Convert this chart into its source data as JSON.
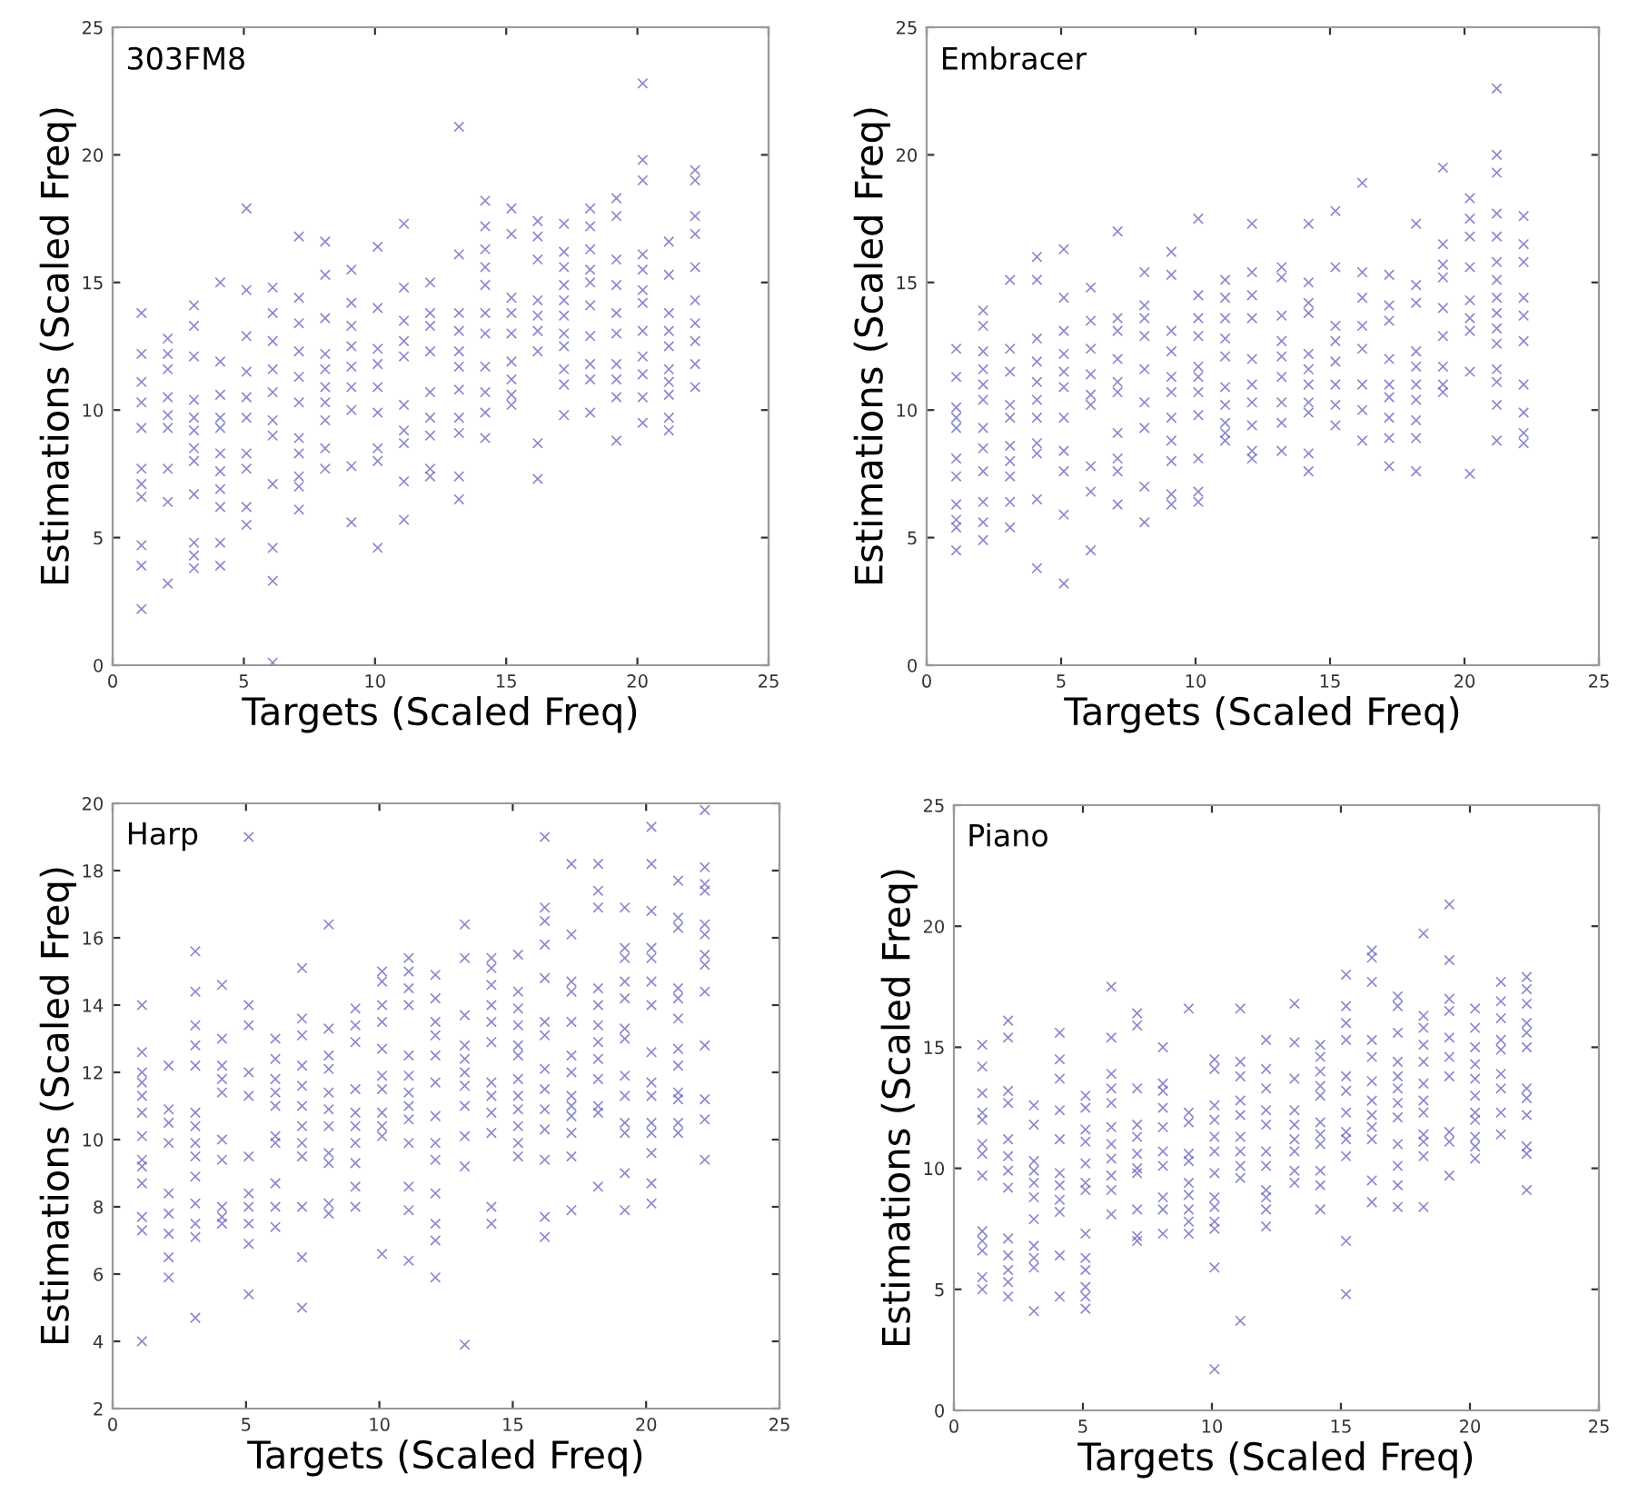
{
  "chart_data": [
    {
      "type": "scatter",
      "title": "303FM8",
      "xlabel": "Targets (Scaled Freq)",
      "ylabel": "Estimations (Scaled Freq)",
      "xlim": [
        0,
        25
      ],
      "ylim": [
        0,
        25
      ],
      "xticks": [
        0,
        5,
        10,
        15,
        20,
        25
      ],
      "yticks": [
        0,
        5,
        10,
        15,
        20,
        25
      ],
      "marker": "cross",
      "grid": false,
      "series": [
        {
          "color": "#6b6bc0",
          "x": [
            1.1,
            1.1,
            1.1,
            1.1,
            1.1,
            1.1,
            1.1,
            1.1,
            1.1,
            1.1,
            1.1,
            2.1,
            2.1,
            2.1,
            2.1,
            2.1,
            2.1,
            2.1,
            2.1,
            2.1,
            3.1,
            3.1,
            3.1,
            3.1,
            3.1,
            3.1,
            3.1,
            3.1,
            3.1,
            3.1,
            3.1,
            3.1,
            4.1,
            4.1,
            4.1,
            4.1,
            4.1,
            4.1,
            4.1,
            4.1,
            4.1,
            4.1,
            4.1,
            5.1,
            5.1,
            5.1,
            5.1,
            5.1,
            5.1,
            5.1,
            5.1,
            5.1,
            5.1,
            6.1,
            6.1,
            6.1,
            6.1,
            6.1,
            6.1,
            6.1,
            6.1,
            6.1,
            6.1,
            6.1,
            7.1,
            7.1,
            7.1,
            7.1,
            7.1,
            7.1,
            7.1,
            7.1,
            7.1,
            7.1,
            7.1,
            8.1,
            8.1,
            8.1,
            8.1,
            8.1,
            8.1,
            8.1,
            8.1,
            8.1,
            8.1,
            9.1,
            9.1,
            9.1,
            9.1,
            9.1,
            9.1,
            9.1,
            9.1,
            9.1,
            10.1,
            10.1,
            10.1,
            10.1,
            10.1,
            10.1,
            10.1,
            10.1,
            10.1,
            11.1,
            11.1,
            11.1,
            11.1,
            11.1,
            11.1,
            11.1,
            11.1,
            11.1,
            11.1,
            12.1,
            12.1,
            12.1,
            12.1,
            12.1,
            12.1,
            12.1,
            12.1,
            12.1,
            13.2,
            13.2,
            13.2,
            13.2,
            13.2,
            13.2,
            13.2,
            13.2,
            13.2,
            13.2,
            13.2,
            14.2,
            14.2,
            14.2,
            14.2,
            14.2,
            14.2,
            14.2,
            14.2,
            14.2,
            14.2,
            14.2,
            15.2,
            15.2,
            15.2,
            15.2,
            15.2,
            15.2,
            15.2,
            15.2,
            15.2,
            16.2,
            16.2,
            16.2,
            16.2,
            16.2,
            16.2,
            16.2,
            16.2,
            16.2,
            17.2,
            17.2,
            17.2,
            17.2,
            17.2,
            17.2,
            17.2,
            17.2,
            17.2,
            17.2,
            17.2,
            18.2,
            18.2,
            18.2,
            18.2,
            18.2,
            18.2,
            18.2,
            18.2,
            18.2,
            18.2,
            19.2,
            19.2,
            19.2,
            19.2,
            19.2,
            19.2,
            19.2,
            19.2,
            19.2,
            19.2,
            20.2,
            20.2,
            20.2,
            20.2,
            20.2,
            20.2,
            20.2,
            20.2,
            20.2,
            20.2,
            20.2,
            20.2,
            21.2,
            21.2,
            21.2,
            21.2,
            21.2,
            21.2,
            21.2,
            21.2,
            21.2,
            21.2,
            22.2,
            22.2,
            22.2,
            22.2,
            22.2,
            22.2,
            22.2,
            22.2,
            22.2,
            22.2
          ],
          "values": [
            13.8,
            12.2,
            11.1,
            10.3,
            9.3,
            7.7,
            7.1,
            6.6,
            4.7,
            3.9,
            2.2,
            12.8,
            12.2,
            11.6,
            10.5,
            9.8,
            9.3,
            7.7,
            6.4,
            3.2,
            14.1,
            13.3,
            12.1,
            10.4,
            9.7,
            9.2,
            8.5,
            8.0,
            6.7,
            4.8,
            4.3,
            3.8,
            15.0,
            11.9,
            10.6,
            9.7,
            9.3,
            8.3,
            7.6,
            6.9,
            6.2,
            4.8,
            3.9,
            17.9,
            14.7,
            12.9,
            11.5,
            10.5,
            9.7,
            8.3,
            7.7,
            6.2,
            5.5,
            14.8,
            13.8,
            12.7,
            11.6,
            10.7,
            9.6,
            9.0,
            7.1,
            4.6,
            3.3,
            0.1,
            16.8,
            14.4,
            13.4,
            12.3,
            11.3,
            10.3,
            8.9,
            8.3,
            7.4,
            7.0,
            6.1,
            16.6,
            15.3,
            13.6,
            12.2,
            11.6,
            10.9,
            10.3,
            9.6,
            8.5,
            7.7,
            15.5,
            14.2,
            13.3,
            12.5,
            11.7,
            10.9,
            10.0,
            7.8,
            5.6,
            16.4,
            14.0,
            12.4,
            11.8,
            10.9,
            9.9,
            8.5,
            8.0,
            4.6,
            17.3,
            14.8,
            13.5,
            12.7,
            12.1,
            10.2,
            9.2,
            8.7,
            7.2,
            5.7,
            15.0,
            13.8,
            13.3,
            12.3,
            10.7,
            9.7,
            9.0,
            7.7,
            7.4,
            21.1,
            16.1,
            13.8,
            13.1,
            12.3,
            11.7,
            10.8,
            9.7,
            9.1,
            7.4,
            6.5,
            18.2,
            17.2,
            16.3,
            15.6,
            14.9,
            13.8,
            13.0,
            11.7,
            10.7,
            9.9,
            8.9,
            17.9,
            16.9,
            14.4,
            13.8,
            13.0,
            11.9,
            11.2,
            10.6,
            10.2,
            17.4,
            16.8,
            15.9,
            14.3,
            13.7,
            13.1,
            12.3,
            8.7,
            7.3,
            17.3,
            16.2,
            15.6,
            14.9,
            14.3,
            13.7,
            13.0,
            12.5,
            11.6,
            11.0,
            9.8,
            17.9,
            17.2,
            16.3,
            15.5,
            15.0,
            14.1,
            12.9,
            11.8,
            11.2,
            9.9,
            18.3,
            17.6,
            15.9,
            14.9,
            13.8,
            13.0,
            11.8,
            11.2,
            10.5,
            8.8,
            22.8,
            19.8,
            19.0,
            16.1,
            15.5,
            14.7,
            14.2,
            13.1,
            12.1,
            11.4,
            10.5,
            9.5,
            16.6,
            15.3,
            13.8,
            13.1,
            12.5,
            11.6,
            11.1,
            10.6,
            9.7,
            9.2,
            19.4,
            19.0,
            17.6,
            16.9,
            15.6,
            14.3,
            13.4,
            12.7,
            11.8,
            10.9
          ]
        }
      ]
    },
    {
      "type": "scatter",
      "title": "Embracer",
      "xlabel": "Targets (Scaled Freq)",
      "ylabel": "Estimations (Scaled Freq)",
      "xlim": [
        0,
        25
      ],
      "ylim": [
        0,
        25
      ],
      "xticks": [
        0,
        5,
        10,
        15,
        20,
        25
      ],
      "yticks": [
        0,
        5,
        10,
        15,
        20,
        25
      ],
      "marker": "cross",
      "grid": false,
      "series": [
        {
          "color": "#6b6bc0",
          "x": [
            1.1,
            1.1,
            1.1,
            1.1,
            1.1,
            1.1,
            1.1,
            1.1,
            1.1,
            1.1,
            1.1,
            2.1,
            2.1,
            2.1,
            2.1,
            2.1,
            2.1,
            2.1,
            2.1,
            2.1,
            2.1,
            2.1,
            2.1,
            3.1,
            3.1,
            3.1,
            3.1,
            3.1,
            3.1,
            3.1,
            3.1,
            3.1,
            3.1,
            4.1,
            4.1,
            4.1,
            4.1,
            4.1,
            4.1,
            4.1,
            4.1,
            4.1,
            4.1,
            4.1,
            5.1,
            5.1,
            5.1,
            5.1,
            5.1,
            5.1,
            5.1,
            5.1,
            5.1,
            5.1,
            5.1,
            6.1,
            6.1,
            6.1,
            6.1,
            6.1,
            6.1,
            6.1,
            6.1,
            6.1,
            7.1,
            7.1,
            7.1,
            7.1,
            7.1,
            7.1,
            7.1,
            7.1,
            7.1,
            7.1,
            8.1,
            8.1,
            8.1,
            8.1,
            8.1,
            8.1,
            8.1,
            8.1,
            8.1,
            9.1,
            9.1,
            9.1,
            9.1,
            9.1,
            9.1,
            9.1,
            9.1,
            9.1,
            9.1,
            9.1,
            10.1,
            10.1,
            10.1,
            10.1,
            10.1,
            10.1,
            10.1,
            10.1,
            10.1,
            10.1,
            10.1,
            11.1,
            11.1,
            11.1,
            11.1,
            11.1,
            11.1,
            11.1,
            11.1,
            11.1,
            11.1,
            12.1,
            12.1,
            12.1,
            12.1,
            12.1,
            12.1,
            12.1,
            12.1,
            12.1,
            12.1,
            13.2,
            13.2,
            13.2,
            13.2,
            13.2,
            13.2,
            13.2,
            13.2,
            13.2,
            14.2,
            14.2,
            14.2,
            14.2,
            14.2,
            14.2,
            14.2,
            14.2,
            14.2,
            14.2,
            14.2,
            15.2,
            15.2,
            15.2,
            15.2,
            15.2,
            15.2,
            15.2,
            15.2,
            16.2,
            16.2,
            16.2,
            16.2,
            16.2,
            16.2,
            16.2,
            16.2,
            17.2,
            17.2,
            17.2,
            17.2,
            17.2,
            17.2,
            17.2,
            17.2,
            17.2,
            18.2,
            18.2,
            18.2,
            18.2,
            18.2,
            18.2,
            18.2,
            18.2,
            18.2,
            18.2,
            19.2,
            19.2,
            19.2,
            19.2,
            19.2,
            19.2,
            19.2,
            19.2,
            19.2,
            20.2,
            20.2,
            20.2,
            20.2,
            20.2,
            20.2,
            20.2,
            20.2,
            20.2,
            21.2,
            21.2,
            21.2,
            21.2,
            21.2,
            21.2,
            21.2,
            21.2,
            21.2,
            21.2,
            21.2,
            21.2,
            21.2,
            21.2,
            21.2,
            22.2,
            22.2,
            22.2,
            22.2,
            22.2,
            22.2,
            22.2,
            22.2,
            22.2,
            22.2
          ],
          "values": [
            12.4,
            11.3,
            10.1,
            9.7,
            9.3,
            8.1,
            7.4,
            6.3,
            5.7,
            5.4,
            4.5,
            13.9,
            13.3,
            12.3,
            11.6,
            11.0,
            10.4,
            9.3,
            8.5,
            7.6,
            6.4,
            5.6,
            4.9,
            15.1,
            12.4,
            11.5,
            10.2,
            9.7,
            8.6,
            8.0,
            7.4,
            6.4,
            5.4,
            16.0,
            15.1,
            12.8,
            11.9,
            11.1,
            10.4,
            9.7,
            8.7,
            8.3,
            6.5,
            3.8,
            16.3,
            14.4,
            13.1,
            12.2,
            11.5,
            10.9,
            9.7,
            8.4,
            7.6,
            5.9,
            3.2,
            14.8,
            13.5,
            12.4,
            11.4,
            10.6,
            10.2,
            7.8,
            6.8,
            4.5,
            17.0,
            13.6,
            13.1,
            12.0,
            11.1,
            10.7,
            9.1,
            8.1,
            7.6,
            6.3,
            15.4,
            14.1,
            13.6,
            12.9,
            11.6,
            10.3,
            9.3,
            7.0,
            5.6,
            16.2,
            15.3,
            13.1,
            12.3,
            11.3,
            10.7,
            9.7,
            8.8,
            8.0,
            6.7,
            6.3,
            17.5,
            14.5,
            13.6,
            12.9,
            11.7,
            11.3,
            10.7,
            9.8,
            8.1,
            6.8,
            6.4,
            15.1,
            14.4,
            13.6,
            12.8,
            12.1,
            10.9,
            10.2,
            9.5,
            9.1,
            8.8,
            17.3,
            15.4,
            14.5,
            13.6,
            12.0,
            11.0,
            10.3,
            9.4,
            8.4,
            8.1,
            15.6,
            15.2,
            13.7,
            12.7,
            12.1,
            11.3,
            10.3,
            9.5,
            8.4,
            17.3,
            15.0,
            14.2,
            13.8,
            12.2,
            11.6,
            11.0,
            10.3,
            9.9,
            8.3,
            7.6,
            17.8,
            15.6,
            13.3,
            12.7,
            11.9,
            11.0,
            10.2,
            9.4,
            18.9,
            15.4,
            14.4,
            13.3,
            12.4,
            11.0,
            10.0,
            8.8,
            15.3,
            14.1,
            13.5,
            12.0,
            11.0,
            10.5,
            9.7,
            8.9,
            7.8,
            17.3,
            14.9,
            14.2,
            12.3,
            11.7,
            11.0,
            10.4,
            9.6,
            8.9,
            7.6,
            19.5,
            16.5,
            15.7,
            15.2,
            14.0,
            12.9,
            11.7,
            11.0,
            10.7,
            18.3,
            17.5,
            16.8,
            15.6,
            14.3,
            13.6,
            13.1,
            11.5,
            7.5,
            22.6,
            20.0,
            19.3,
            17.7,
            16.8,
            15.8,
            15.1,
            14.4,
            13.8,
            13.2,
            12.6,
            11.6,
            11.1,
            10.2,
            8.8,
            17.6,
            16.5,
            15.8,
            14.4,
            13.7,
            12.7,
            11.0,
            9.9,
            9.1,
            8.7
          ]
        }
      ]
    },
    {
      "type": "scatter",
      "title": "Harp",
      "xlabel": "Targets (Scaled Freq)",
      "ylabel": "Estimations (Scaled Freq)",
      "xlim": [
        0,
        25
      ],
      "ylim": [
        2,
        20
      ],
      "xticks": [
        0,
        5,
        10,
        15,
        20,
        25
      ],
      "yticks": [
        2,
        4,
        6,
        8,
        10,
        12,
        14,
        16,
        18,
        20
      ],
      "marker": "cross",
      "grid": false,
      "series": [
        {
          "color": "#6b6bc0",
          "x": [
            1.1,
            1.1,
            1.1,
            1.1,
            1.1,
            1.1,
            1.1,
            1.1,
            1.1,
            1.1,
            1.1,
            1.1,
            1.1,
            2.1,
            2.1,
            2.1,
            2.1,
            2.1,
            2.1,
            2.1,
            2.1,
            2.1,
            3.1,
            3.1,
            3.1,
            3.1,
            3.1,
            3.1,
            3.1,
            3.1,
            3.1,
            3.1,
            3.1,
            3.1,
            3.1,
            3.1,
            4.1,
            4.1,
            4.1,
            4.1,
            4.1,
            4.1,
            4.1,
            4.1,
            4.1,
            4.1,
            5.1,
            5.1,
            5.1,
            5.1,
            5.1,
            5.1,
            5.1,
            5.1,
            5.1,
            5.1,
            5.1,
            6.1,
            6.1,
            6.1,
            6.1,
            6.1,
            6.1,
            6.1,
            6.1,
            6.1,
            6.1,
            7.1,
            7.1,
            7.1,
            7.1,
            7.1,
            7.1,
            7.1,
            7.1,
            7.1,
            7.1,
            7.1,
            7.1,
            8.1,
            8.1,
            8.1,
            8.1,
            8.1,
            8.1,
            8.1,
            8.1,
            8.1,
            8.1,
            8.1,
            9.1,
            9.1,
            9.1,
            9.1,
            9.1,
            9.1,
            9.1,
            9.1,
            9.1,
            9.1,
            10.1,
            10.1,
            10.1,
            10.1,
            10.1,
            10.1,
            10.1,
            10.1,
            10.1,
            10.1,
            10.1,
            11.1,
            11.1,
            11.1,
            11.1,
            11.1,
            11.1,
            11.1,
            11.1,
            11.1,
            11.1,
            11.1,
            11.1,
            11.1,
            12.1,
            12.1,
            12.1,
            12.1,
            12.1,
            12.1,
            12.1,
            12.1,
            12.1,
            12.1,
            12.1,
            12.1,
            12.1,
            13.2,
            13.2,
            13.2,
            13.2,
            13.2,
            13.2,
            13.2,
            13.2,
            13.2,
            13.2,
            13.2,
            14.2,
            14.2,
            14.2,
            14.2,
            14.2,
            14.2,
            14.2,
            14.2,
            14.2,
            14.2,
            14.2,
            14.2,
            15.2,
            15.2,
            15.2,
            15.2,
            15.2,
            15.2,
            15.2,
            15.2,
            15.2,
            15.2,
            15.2,
            15.2,
            16.2,
            16.2,
            16.2,
            16.2,
            16.2,
            16.2,
            16.2,
            16.2,
            16.2,
            16.2,
            16.2,
            16.2,
            16.2,
            16.2,
            17.2,
            17.2,
            17.2,
            17.2,
            17.2,
            17.2,
            17.2,
            17.2,
            17.2,
            17.2,
            17.2,
            17.2,
            17.2,
            18.2,
            18.2,
            18.2,
            18.2,
            18.2,
            18.2,
            18.2,
            18.2,
            18.2,
            18.2,
            18.2,
            18.2,
            19.2,
            19.2,
            19.2,
            19.2,
            19.2,
            19.2,
            19.2,
            19.2,
            19.2,
            19.2,
            19.2,
            19.2,
            19.2,
            20.2,
            20.2,
            20.2,
            20.2,
            20.2,
            20.2,
            20.2,
            20.2,
            20.2,
            20.2,
            20.2,
            20.2,
            20.2,
            20.2,
            20.2,
            21.2,
            21.2,
            21.2,
            21.2,
            21.2,
            21.2,
            21.2,
            21.2,
            21.2,
            21.2,
            21.2,
            21.2,
            22.2,
            22.2,
            22.2,
            22.2,
            22.2,
            22.2,
            22.2,
            22.2,
            22.2,
            22.2,
            22.2,
            22.2,
            22.2
          ],
          "values": [
            14.0,
            12.6,
            12.0,
            11.7,
            11.3,
            10.8,
            10.1,
            9.4,
            9.2,
            8.7,
            7.7,
            7.3,
            4.0,
            12.2,
            10.9,
            10.5,
            9.9,
            8.4,
            7.8,
            7.2,
            6.5,
            5.9,
            15.6,
            14.4,
            13.4,
            12.8,
            12.2,
            10.8,
            10.4,
            9.9,
            9.5,
            8.9,
            8.1,
            7.5,
            7.1,
            4.7,
            14.6,
            13.0,
            12.2,
            11.8,
            11.4,
            10.0,
            9.4,
            8.0,
            7.7,
            7.5,
            19.0,
            14.0,
            13.4,
            12.0,
            11.3,
            9.5,
            8.4,
            8.0,
            7.5,
            6.9,
            5.4,
            13.0,
            12.4,
            11.8,
            11.4,
            11.0,
            10.1,
            9.9,
            8.7,
            8.0,
            7.4,
            15.1,
            13.6,
            13.1,
            12.2,
            11.6,
            11.0,
            10.4,
            9.9,
            9.5,
            8.0,
            6.5,
            5.0,
            16.4,
            13.3,
            12.5,
            12.1,
            11.4,
            10.9,
            10.4,
            9.6,
            9.3,
            8.1,
            7.8,
            13.9,
            13.4,
            12.9,
            11.5,
            10.8,
            10.4,
            9.9,
            9.3,
            8.6,
            8.0,
            15.0,
            14.7,
            14.0,
            13.5,
            12.7,
            11.9,
            11.5,
            10.8,
            10.4,
            10.1,
            6.6,
            15.4,
            15.0,
            14.5,
            14.0,
            12.5,
            11.9,
            11.4,
            11.0,
            10.6,
            9.9,
            8.6,
            7.9,
            6.4,
            14.9,
            14.2,
            13.5,
            13.1,
            12.5,
            11.7,
            10.7,
            9.9,
            9.4,
            8.4,
            7.5,
            7.0,
            5.9,
            16.4,
            15.4,
            13.7,
            12.8,
            12.4,
            12.0,
            11.6,
            11.0,
            10.1,
            9.2,
            3.9,
            15.4,
            15.1,
            14.6,
            14.0,
            13.5,
            12.9,
            11.7,
            11.3,
            10.8,
            10.2,
            8.0,
            7.5,
            15.5,
            14.4,
            13.9,
            13.4,
            12.8,
            12.5,
            11.8,
            11.3,
            10.9,
            10.4,
            9.9,
            9.5,
            19.0,
            16.9,
            16.5,
            15.8,
            14.8,
            13.5,
            13.1,
            12.1,
            11.5,
            10.9,
            10.3,
            9.4,
            7.7,
            7.1,
            18.2,
            16.1,
            14.7,
            14.4,
            13.5,
            12.5,
            12.0,
            11.3,
            11.0,
            10.7,
            10.2,
            9.5,
            7.9,
            18.2,
            17.4,
            16.9,
            14.5,
            14.0,
            13.4,
            12.9,
            12.4,
            11.8,
            11.0,
            10.8,
            8.6,
            16.9,
            15.7,
            15.4,
            14.7,
            14.2,
            13.3,
            13.0,
            11.9,
            11.3,
            10.5,
            10.2,
            9.0,
            7.9,
            19.3,
            18.2,
            16.8,
            15.7,
            15.4,
            14.7,
            14.0,
            12.6,
            11.7,
            11.3,
            10.5,
            10.2,
            9.6,
            8.7,
            8.1,
            17.7,
            16.6,
            16.3,
            14.5,
            14.2,
            13.6,
            12.7,
            12.2,
            11.4,
            11.2,
            10.5,
            10.2,
            19.8,
            18.1,
            17.6,
            17.4,
            16.4,
            16.1,
            15.5,
            15.2,
            14.4,
            12.8,
            11.2,
            10.6,
            9.4
          ]
        }
      ]
    },
    {
      "type": "scatter",
      "title": "Piano",
      "xlabel": "Targets (Scaled Freq)",
      "ylabel": "Estimations (Scaled Freq)",
      "xlim": [
        0,
        25
      ],
      "ylim": [
        0,
        25
      ],
      "xticks": [
        0,
        5,
        10,
        15,
        20,
        25
      ],
      "yticks": [
        0,
        5,
        10,
        15,
        20,
        25
      ],
      "marker": "cross",
      "grid": false,
      "series": [
        {
          "color": "#6b6bc0",
          "x": [
            1.1,
            1.1,
            1.1,
            1.1,
            1.1,
            1.1,
            1.1,
            1.1,
            1.1,
            1.1,
            1.1,
            1.1,
            1.1,
            2.1,
            2.1,
            2.1,
            2.1,
            2.1,
            2.1,
            2.1,
            2.1,
            2.1,
            2.1,
            2.1,
            2.1,
            2.1,
            3.1,
            3.1,
            3.1,
            3.1,
            3.1,
            3.1,
            3.1,
            3.1,
            3.1,
            3.1,
            3.1,
            4.1,
            4.1,
            4.1,
            4.1,
            4.1,
            4.1,
            4.1,
            4.1,
            4.1,
            4.1,
            4.1,
            5.1,
            5.1,
            5.1,
            5.1,
            5.1,
            5.1,
            5.1,
            5.1,
            5.1,
            5.1,
            5.1,
            5.1,
            5.1,
            6.1,
            6.1,
            6.1,
            6.1,
            6.1,
            6.1,
            6.1,
            6.1,
            6.1,
            6.1,
            6.1,
            7.1,
            7.1,
            7.1,
            7.1,
            7.1,
            7.1,
            7.1,
            7.1,
            7.1,
            7.1,
            7.1,
            8.1,
            8.1,
            8.1,
            8.1,
            8.1,
            8.1,
            8.1,
            8.1,
            8.1,
            8.1,
            9.1,
            9.1,
            9.1,
            9.1,
            9.1,
            9.1,
            9.1,
            9.1,
            9.1,
            9.1,
            10.1,
            10.1,
            10.1,
            10.1,
            10.1,
            10.1,
            10.1,
            10.1,
            10.1,
            10.1,
            10.1,
            10.1,
            10.1,
            11.1,
            11.1,
            11.1,
            11.1,
            11.1,
            11.1,
            11.1,
            11.1,
            11.1,
            11.1,
            12.1,
            12.1,
            12.1,
            12.1,
            12.1,
            12.1,
            12.1,
            12.1,
            12.1,
            12.1,
            12.1,
            13.2,
            13.2,
            13.2,
            13.2,
            13.2,
            13.2,
            13.2,
            13.2,
            13.2,
            14.2,
            14.2,
            14.2,
            14.2,
            14.2,
            14.2,
            14.2,
            14.2,
            14.2,
            14.2,
            14.2,
            15.2,
            15.2,
            15.2,
            15.2,
            15.2,
            15.2,
            15.2,
            15.2,
            15.2,
            15.2,
            15.2,
            15.2,
            16.2,
            16.2,
            16.2,
            16.2,
            16.2,
            16.2,
            16.2,
            16.2,
            16.2,
            16.2,
            16.2,
            16.2,
            17.2,
            17.2,
            17.2,
            17.2,
            17.2,
            17.2,
            17.2,
            17.2,
            17.2,
            17.2,
            17.2,
            17.2,
            18.2,
            18.2,
            18.2,
            18.2,
            18.2,
            18.2,
            18.2,
            18.2,
            18.2,
            18.2,
            18.2,
            18.2,
            19.2,
            19.2,
            19.2,
            19.2,
            19.2,
            19.2,
            19.2,
            19.2,
            19.2,
            19.2,
            20.2,
            20.2,
            20.2,
            20.2,
            20.2,
            20.2,
            20.2,
            20.2,
            20.2,
            20.2,
            20.2,
            21.2,
            21.2,
            21.2,
            21.2,
            21.2,
            21.2,
            21.2,
            21.2,
            21.2,
            22.2,
            22.2,
            22.2,
            22.2,
            22.2,
            22.2,
            22.2,
            22.2,
            22.2,
            22.2,
            22.2,
            22.2
          ],
          "values": [
            15.1,
            14.2,
            13.1,
            12.3,
            12.0,
            11.0,
            10.6,
            9.7,
            7.4,
            7.0,
            6.6,
            5.5,
            5.0,
            16.1,
            15.4,
            13.2,
            12.7,
            11.2,
            10.5,
            9.9,
            9.2,
            7.1,
            6.4,
            5.8,
            5.3,
            4.7,
            12.6,
            11.8,
            10.3,
            9.9,
            9.4,
            8.8,
            7.9,
            6.8,
            6.3,
            5.9,
            4.1,
            15.6,
            14.5,
            13.7,
            12.4,
            11.2,
            9.8,
            9.3,
            8.7,
            8.2,
            6.4,
            4.7,
            13.0,
            12.5,
            11.6,
            11.1,
            10.2,
            9.4,
            9.1,
            7.3,
            6.3,
            5.8,
            5.1,
            4.7,
            4.2,
            17.5,
            15.4,
            13.9,
            13.3,
            12.7,
            11.7,
            11.0,
            10.4,
            9.7,
            9.1,
            8.1,
            16.4,
            15.9,
            13.3,
            11.8,
            11.3,
            10.6,
            10.0,
            9.8,
            8.3,
            7.2,
            7.0,
            15.0,
            13.5,
            13.2,
            12.5,
            11.7,
            10.7,
            10.1,
            8.8,
            8.3,
            7.3,
            16.6,
            12.3,
            11.9,
            10.6,
            10.3,
            9.4,
            8.9,
            8.3,
            7.8,
            7.3,
            14.5,
            14.1,
            12.6,
            12.0,
            11.3,
            10.7,
            9.8,
            8.8,
            8.4,
            7.8,
            7.5,
            5.9,
            1.7,
            16.6,
            14.4,
            13.8,
            12.8,
            12.2,
            11.3,
            10.7,
            10.1,
            9.6,
            3.7,
            15.3,
            14.1,
            13.3,
            12.4,
            11.8,
            10.7,
            10.1,
            9.1,
            8.8,
            8.3,
            7.6,
            16.8,
            15.2,
            13.7,
            12.4,
            11.8,
            11.2,
            10.7,
            9.9,
            9.4,
            15.1,
            14.6,
            14.0,
            13.4,
            13.0,
            11.9,
            11.4,
            11.0,
            9.9,
            9.3,
            8.3,
            18.0,
            16.7,
            16.0,
            15.3,
            13.8,
            13.2,
            12.3,
            11.5,
            11.2,
            10.5,
            7.0,
            4.8,
            19.0,
            18.7,
            17.7,
            15.3,
            14.6,
            13.6,
            12.8,
            12.2,
            11.7,
            11.2,
            9.5,
            8.6,
            17.1,
            16.7,
            15.6,
            14.4,
            13.8,
            13.3,
            12.7,
            12.1,
            11.0,
            10.1,
            9.3,
            8.4,
            19.7,
            16.3,
            15.8,
            15.1,
            14.4,
            13.5,
            12.8,
            12.3,
            11.4,
            11.1,
            10.5,
            8.4,
            20.9,
            18.6,
            17.0,
            16.5,
            15.4,
            14.6,
            13.8,
            11.5,
            11.1,
            9.7,
            16.6,
            15.8,
            15.0,
            14.3,
            13.7,
            13.0,
            12.3,
            12.0,
            11.3,
            10.9,
            10.4,
            17.7,
            16.9,
            16.2,
            15.3,
            14.9,
            13.9,
            13.3,
            12.3,
            11.4,
            17.9,
            17.4,
            16.8,
            16.0,
            15.6,
            15.0,
            13.3,
            12.9,
            12.2,
            10.9,
            10.6,
            9.1
          ]
        }
      ]
    }
  ]
}
